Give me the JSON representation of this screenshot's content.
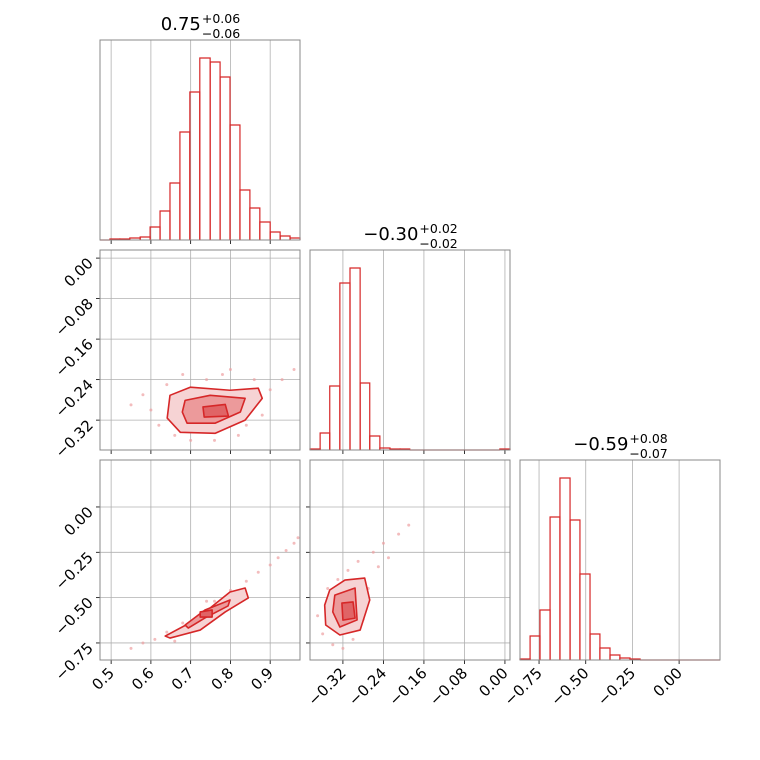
{
  "chart_data": [
    {
      "type": "histogram",
      "title": "0.75",
      "title_upper": "+0.06",
      "title_lower": "−0.06",
      "color": "#d62728",
      "bins": [
        0.472,
        0.497,
        0.522,
        0.547,
        0.573,
        0.598,
        0.623,
        0.648,
        0.673,
        0.698,
        0.723,
        0.749,
        0.774,
        0.799,
        0.824,
        0.849,
        0.874,
        0.9,
        0.925,
        0.95,
        0.975
      ],
      "values": [
        0,
        1,
        1,
        2,
        3,
        13,
        29,
        57,
        108,
        148,
        182,
        178,
        163,
        115,
        50,
        32,
        18,
        8,
        4,
        2
      ],
      "xlim": [
        0.472,
        0.975
      ],
      "xticks": [
        0.5,
        0.6,
        0.7,
        0.8,
        0.9
      ],
      "ylim": [
        0,
        200
      ],
      "grid": true,
      "xticklabels": false
    },
    {
      "type": "scatter",
      "color": "#d62728",
      "point_color": "#eea0a1",
      "contour_colors": [
        "#f6d3d4",
        "#ec9a9b",
        "#e06466"
      ],
      "points": {
        "x": [
          0.55,
          0.58,
          0.62,
          0.66,
          0.7,
          0.74,
          0.78,
          0.82,
          0.86,
          0.9,
          0.93,
          0.96,
          0.64,
          0.72,
          0.8,
          0.88,
          0.6,
          0.76,
          0.84,
          0.68
        ],
        "y": [
          -0.29,
          -0.27,
          -0.33,
          -0.35,
          -0.36,
          -0.24,
          -0.23,
          -0.35,
          -0.24,
          -0.26,
          -0.24,
          -0.22,
          -0.25,
          -0.34,
          -0.22,
          -0.31,
          -0.3,
          -0.36,
          -0.33,
          -0.23
        ]
      },
      "contours": [
        {
          "x": [
            0.648,
            0.699,
            0.799,
            0.87,
            0.88,
            0.837,
            0.762,
            0.674,
            0.641
          ],
          "y": [
            -0.271,
            -0.255,
            -0.261,
            -0.257,
            -0.277,
            -0.32,
            -0.346,
            -0.344,
            -0.316
          ]
        },
        {
          "x": [
            0.686,
            0.749,
            0.837,
            0.825,
            0.762,
            0.691,
            0.679
          ],
          "y": [
            -0.281,
            -0.271,
            -0.277,
            -0.304,
            -0.326,
            -0.326,
            -0.304
          ]
        },
        {
          "x": [
            0.731,
            0.787,
            0.795,
            0.734
          ],
          "y": [
            -0.294,
            -0.289,
            -0.312,
            -0.314
          ]
        }
      ],
      "xlim": [
        0.472,
        0.975
      ],
      "xticks": [
        0.5,
        0.6,
        0.7,
        0.8,
        0.9
      ],
      "ylim": [
        -0.379,
        0.016
      ],
      "yticks": [
        {
          "value": 0,
          "label": "0.00"
        },
        {
          "value": -0.08,
          "label": "−0.08"
        },
        {
          "value": -0.16,
          "label": "−0.16"
        },
        {
          "value": -0.24,
          "label": "−0.24"
        },
        {
          "value": -0.32,
          "label": "−0.32"
        }
      ],
      "grid": true,
      "xticklabels": false,
      "yticklabels": true
    },
    {
      "type": "histogram",
      "title": "−0.30",
      "title_upper": "+0.02",
      "title_lower": "−0.02",
      "color": "#d62728",
      "bins": [
        -0.385,
        -0.365,
        -0.346,
        -0.326,
        -0.306,
        -0.286,
        -0.267,
        -0.247,
        -0.227,
        -0.207,
        -0.188,
        -0.168,
        -0.148,
        -0.128,
        -0.109,
        -0.089,
        -0.069,
        -0.049,
        -0.029,
        -0.01,
        0.01
      ],
      "values": [
        1,
        17,
        64,
        167,
        182,
        67,
        14,
        2,
        1,
        1,
        0,
        0,
        0,
        0,
        0,
        0,
        0,
        0,
        0,
        1
      ],
      "xlim": [
        -0.385,
        0.01
      ],
      "xticks": [
        {
          "value": -0.32,
          "label": "−0.32"
        },
        {
          "value": -0.24,
          "label": "−0.24"
        },
        {
          "value": -0.16,
          "label": "−0.16"
        },
        {
          "value": -0.08,
          "label": "−0.08"
        },
        {
          "value": 0,
          "label": "0.00"
        }
      ],
      "ylim": [
        0,
        200
      ],
      "grid": true,
      "xticklabels": false
    },
    {
      "type": "scatter",
      "color": "#d62728",
      "point_color": "#eea0a1",
      "contour_colors": [
        "#f6d3d4",
        "#ec9a9b",
        "#e06466"
      ],
      "points": {
        "x": [
          0.55,
          0.58,
          0.61,
          0.64,
          0.68,
          0.72,
          0.76,
          0.8,
          0.84,
          0.87,
          0.9,
          0.92,
          0.94,
          0.96,
          0.97,
          0.66,
          0.74,
          0.82
        ],
        "y": [
          -0.78,
          -0.75,
          -0.73,
          -0.69,
          -0.64,
          -0.6,
          -0.52,
          -0.46,
          -0.41,
          -0.36,
          -0.32,
          -0.28,
          -0.24,
          -0.2,
          -0.17,
          -0.74,
          -0.52,
          -0.5
        ]
      },
      "contours": [
        {
          "x": [
            0.636,
            0.711,
            0.799,
            0.837,
            0.845,
            0.787,
            0.724,
            0.648
          ],
          "y": [
            -0.712,
            -0.624,
            -0.469,
            -0.447,
            -0.502,
            -0.579,
            -0.679,
            -0.723
          ]
        },
        {
          "x": [
            0.686,
            0.736,
            0.799,
            0.794,
            0.736,
            0.694
          ],
          "y": [
            -0.651,
            -0.568,
            -0.513,
            -0.546,
            -0.612,
            -0.668
          ]
        },
        {
          "x": [
            0.724,
            0.754,
            0.754,
            0.724
          ],
          "y": [
            -0.579,
            -0.568,
            -0.607,
            -0.607
          ]
        }
      ],
      "xlim": [
        0.472,
        0.975
      ],
      "xticks": [
        0.5,
        0.6,
        0.7,
        0.8,
        0.9
      ],
      "ylim": [
        -0.844,
        0.259
      ],
      "yticks": [
        {
          "value": 0,
          "label": "0.00"
        },
        {
          "value": -0.25,
          "label": "−0.25"
        },
        {
          "value": -0.5,
          "label": "−0.50"
        },
        {
          "value": -0.75,
          "label": "−0.75"
        }
      ],
      "grid": true,
      "xticklabels": true,
      "yticklabels": true
    },
    {
      "type": "scatter",
      "color": "#d62728",
      "point_color": "#eea0a1",
      "contour_colors": [
        "#f6d3d4",
        "#ec9a9b",
        "#e06466"
      ],
      "points": {
        "x": [
          -0.37,
          -0.36,
          -0.35,
          -0.34,
          -0.33,
          -0.31,
          -0.3,
          -0.29,
          -0.27,
          -0.26,
          -0.25,
          -0.24,
          -0.23,
          -0.21,
          -0.19,
          -0.35,
          -0.28,
          -0.32
        ],
        "y": [
          -0.6,
          -0.7,
          -0.45,
          -0.76,
          -0.4,
          -0.35,
          -0.73,
          -0.3,
          -0.45,
          -0.25,
          -0.33,
          -0.2,
          -0.28,
          -0.15,
          -0.1,
          -0.52,
          -0.62,
          -0.78
        ]
      },
      "contours": [
        {
          "x": [
            -0.346,
            -0.316,
            -0.277,
            -0.267,
            -0.286,
            -0.326,
            -0.354,
            -0.356
          ],
          "y": [
            -0.458,
            -0.403,
            -0.392,
            -0.513,
            -0.679,
            -0.706,
            -0.651,
            -0.541
          ]
        },
        {
          "x": [
            -0.336,
            -0.296,
            -0.292,
            -0.326,
            -0.34
          ],
          "y": [
            -0.486,
            -0.447,
            -0.623,
            -0.662,
            -0.579
          ]
        },
        {
          "x": [
            -0.322,
            -0.3,
            -0.296,
            -0.32
          ],
          "y": [
            -0.53,
            -0.524,
            -0.613,
            -0.624
          ]
        }
      ],
      "xlim": [
        -0.385,
        0.01
      ],
      "xticks": [
        {
          "value": -0.32,
          "label": "−0.32"
        },
        {
          "value": -0.24,
          "label": "−0.24"
        },
        {
          "value": -0.16,
          "label": "−0.16"
        },
        {
          "value": -0.08,
          "label": "−0.08"
        },
        {
          "value": 0,
          "label": "0.00"
        }
      ],
      "ylim": [
        -0.844,
        0.259
      ],
      "yticks": [
        {
          "value": 0,
          "label": "0.00"
        },
        {
          "value": -0.25,
          "label": "−0.25"
        },
        {
          "value": -0.5,
          "label": "−0.50"
        },
        {
          "value": -0.75,
          "label": "−0.75"
        }
      ],
      "grid": true,
      "xticklabels": true,
      "yticklabels": false
    },
    {
      "type": "histogram",
      "title": "−0.59",
      "title_upper": "+0.08",
      "title_lower": "−0.07",
      "color": "#d62728",
      "bins": [
        -0.852,
        -0.798,
        -0.745,
        -0.691,
        -0.638,
        -0.584,
        -0.531,
        -0.477,
        -0.424,
        -0.37,
        -0.317,
        -0.263,
        -0.209,
        -0.156,
        -0.102,
        -0.049,
        0.005,
        0.058,
        0.112,
        0.165,
        0.219
      ],
      "values": [
        1,
        24,
        50,
        143,
        182,
        140,
        86,
        26,
        12,
        5,
        2,
        1,
        0,
        0,
        0,
        0,
        0,
        0,
        0,
        0
      ],
      "xlim": [
        -0.852,
        0.219
      ],
      "xticks": [
        {
          "value": -0.75,
          "label": "−0.75"
        },
        {
          "value": -0.5,
          "label": "−0.50"
        },
        {
          "value": -0.25,
          "label": "−0.25"
        },
        {
          "value": 0,
          "label": "0.00"
        }
      ],
      "ylim": [
        0,
        200
      ],
      "grid": true,
      "xticklabels": true
    }
  ]
}
